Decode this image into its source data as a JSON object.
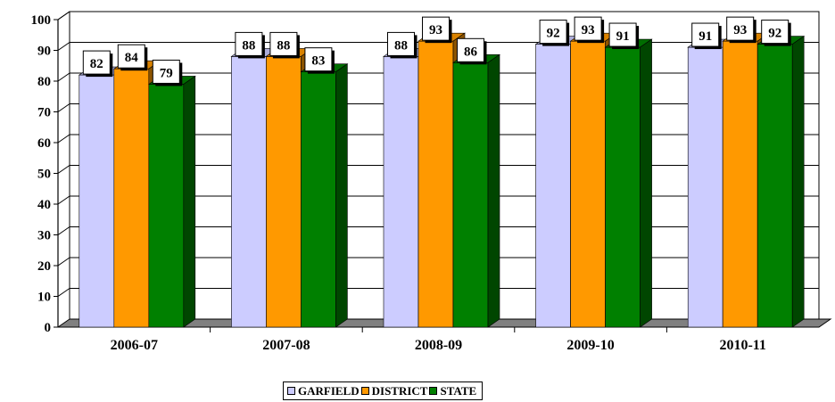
{
  "chart_data": {
    "type": "bar",
    "style": "3d-clustered",
    "categories": [
      "2006-07",
      "2007-08",
      "2008-09",
      "2009-10",
      "2010-11"
    ],
    "series": [
      {
        "name": "GARFIELD",
        "color": "#ccccff",
        "values": [
          82,
          88,
          88,
          92,
          91
        ]
      },
      {
        "name": "DISTRICT",
        "color": "#ff9900",
        "values": [
          84,
          88,
          93,
          93,
          93
        ]
      },
      {
        "name": "STATE",
        "color": "#008000",
        "values": [
          79,
          83,
          86,
          91,
          92
        ]
      }
    ],
    "ylim": [
      0,
      100
    ],
    "yticks": [
      0,
      10,
      20,
      30,
      40,
      50,
      60,
      70,
      80,
      90,
      100
    ],
    "grid": true,
    "data_labels": true,
    "legend_position": "bottom"
  }
}
